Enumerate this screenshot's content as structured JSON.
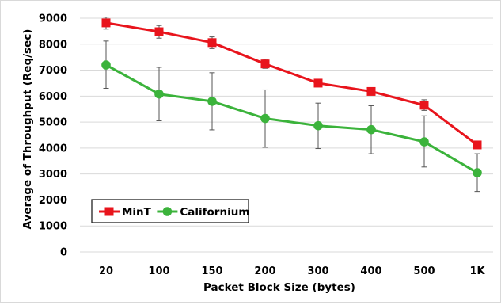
{
  "chart_data": {
    "type": "line",
    "title": "",
    "xlabel": "Packet Block Size (bytes)",
    "ylabel": "Average of Throughput (Req/sec)",
    "categories": [
      "20",
      "100",
      "150",
      "200",
      "300",
      "400",
      "500",
      "1K"
    ],
    "ylim": [
      0,
      9000
    ],
    "yticks": [
      0,
      1000,
      2000,
      3000,
      4000,
      5000,
      6000,
      7000,
      8000,
      9000
    ],
    "grid": "horizontal",
    "legend_position": "bottom-left",
    "series": [
      {
        "name": "MinT",
        "color": "#e8141c",
        "marker": "square",
        "values": [
          8820,
          8480,
          8060,
          7240,
          6500,
          6180,
          5650,
          4120
        ],
        "error_low": [
          8580,
          8230,
          7830,
          7070,
          6360,
          6090,
          5450,
          4040
        ],
        "error_high": [
          9040,
          8720,
          8280,
          7420,
          6650,
          6270,
          5860,
          4220
        ]
      },
      {
        "name": "Californium",
        "color": "#3bb33b",
        "marker": "circle",
        "values": [
          7200,
          6080,
          5800,
          5140,
          4860,
          4710,
          4240,
          3050
        ],
        "error_low": [
          6300,
          5050,
          4700,
          4030,
          3980,
          3780,
          3270,
          2330
        ],
        "error_high": [
          8120,
          7110,
          6900,
          6240,
          5730,
          5630,
          5240,
          3780
        ]
      }
    ]
  }
}
